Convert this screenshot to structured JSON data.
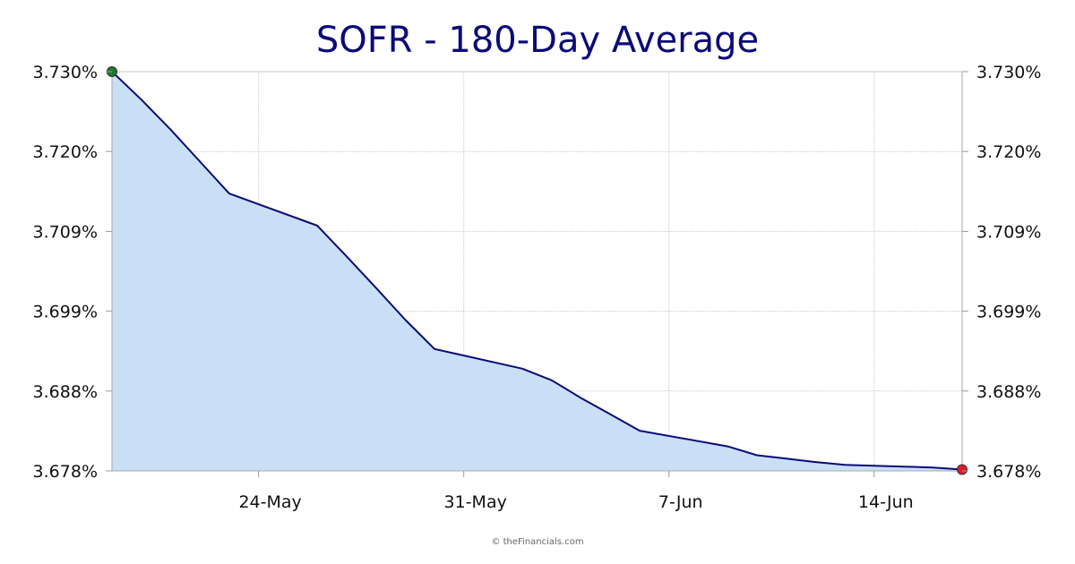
{
  "chart_data": {
    "type": "area",
    "title": "SOFR - 180-Day Average",
    "xlabel": "",
    "ylabel": "",
    "x": [
      "2025-05-19",
      "2025-05-20",
      "2025-05-21",
      "2025-05-22",
      "2025-05-23",
      "2025-05-26",
      "2025-05-27",
      "2025-05-28",
      "2025-05-29",
      "2025-05-30",
      "2025-06-02",
      "2025-06-03",
      "2025-06-04",
      "2025-06-05",
      "2025-06-06",
      "2025-06-09",
      "2025-06-10",
      "2025-06-11",
      "2025-06-12",
      "2025-06-13",
      "2025-06-16",
      "2025-06-17"
    ],
    "values": [
      3.7297,
      3.7256,
      3.7212,
      3.7165,
      3.7118,
      3.7071,
      3.7026,
      3.698,
      3.6933,
      3.689,
      3.6861,
      3.6844,
      3.6818,
      3.6794,
      3.677,
      3.6747,
      3.6734,
      3.6729,
      3.6724,
      3.672,
      3.6716,
      3.6713
    ],
    "x_ticks": [
      {
        "date": "2025-05-24",
        "label": "24-May"
      },
      {
        "date": "2025-05-31",
        "label": "31-May"
      },
      {
        "date": "2025-06-07",
        "label": "7-Jun"
      },
      {
        "date": "2025-06-14",
        "label": "14-Jun"
      }
    ],
    "y_ticks": [
      "3.678%",
      "3.688%",
      "3.699%",
      "3.709%",
      "3.720%",
      "3.730%"
    ],
    "ylim": [
      3.6711,
      3.7297
    ],
    "grid": true,
    "legend": "none",
    "colors": {
      "line": "#0a0a78",
      "fill": "#c9dff5",
      "start_marker": "#1e7a2e",
      "end_marker": "#e01b2a",
      "title": "#0a0a78",
      "grid": "#c8c8c8"
    }
  },
  "credit": "© theFinancials.com"
}
